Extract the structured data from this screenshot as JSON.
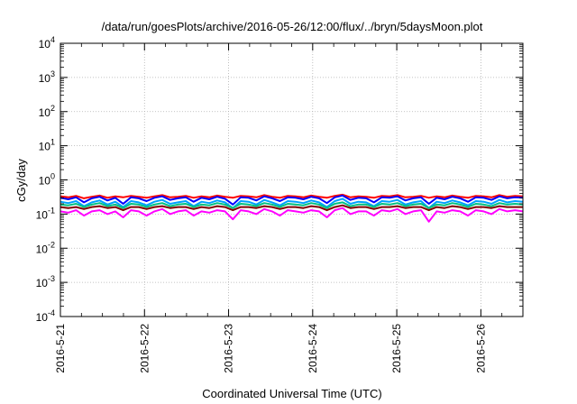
{
  "chart_data": {
    "type": "line",
    "title": "/data/run/goesPlots/archive/2016-05-26/12:00/flux/../bryn/5daysMoon.plot",
    "xlabel": "Coordinated Universal Time (UTC)",
    "ylabel": "cGy/day",
    "x_domain": [
      "2016-05-21",
      "2016-05-26 12:00"
    ],
    "x_ticks": [
      "2016-5-21",
      "2016-5-22",
      "2016-5-23",
      "2016-5-24",
      "2016-5-25",
      "2016-5-26"
    ],
    "y_scale": "log",
    "ylim": [
      0.0001,
      10000
    ],
    "y_ticks": [
      {
        "base": "10",
        "exp": "-4",
        "value": 0.0001
      },
      {
        "base": "10",
        "exp": "-3",
        "value": 0.001
      },
      {
        "base": "10",
        "exp": "-2",
        "value": 0.01
      },
      {
        "base": "10",
        "exp": "-1",
        "value": 0.1
      },
      {
        "base": "10",
        "exp": "0",
        "value": 1
      },
      {
        "base": "10",
        "exp": "1",
        "value": 10
      },
      {
        "base": "10",
        "exp": "2",
        "value": 100
      },
      {
        "base": "10",
        "exp": "3",
        "value": 1000
      },
      {
        "base": "10",
        "exp": "4",
        "value": 10000
      }
    ],
    "grid": true,
    "series": [
      {
        "color": "#ff0000",
        "values": [
          0.33,
          0.31,
          0.34,
          0.29,
          0.32,
          0.35,
          0.3,
          0.33,
          0.31,
          0.34,
          0.32,
          0.3,
          0.33,
          0.36,
          0.31,
          0.32,
          0.34,
          0.3,
          0.33,
          0.31,
          0.35,
          0.32,
          0.3,
          0.34,
          0.33,
          0.31,
          0.36,
          0.32,
          0.3,
          0.34,
          0.33,
          0.31,
          0.35,
          0.32,
          0.3,
          0.34,
          0.37,
          0.31,
          0.33,
          0.32,
          0.3,
          0.34,
          0.33,
          0.36,
          0.31,
          0.32,
          0.34,
          0.3,
          0.33,
          0.31,
          0.35,
          0.32,
          0.3,
          0.34,
          0.33,
          0.31,
          0.36,
          0.32,
          0.34,
          0.33
        ]
      },
      {
        "color": "#0000ff",
        "values": [
          0.3,
          0.27,
          0.31,
          0.22,
          0.29,
          0.32,
          0.25,
          0.3,
          0.2,
          0.31,
          0.29,
          0.24,
          0.3,
          0.33,
          0.26,
          0.29,
          0.31,
          0.23,
          0.3,
          0.27,
          0.32,
          0.28,
          0.19,
          0.31,
          0.3,
          0.25,
          0.33,
          0.29,
          0.24,
          0.31,
          0.3,
          0.27,
          0.32,
          0.29,
          0.21,
          0.31,
          0.35,
          0.26,
          0.3,
          0.29,
          0.22,
          0.31,
          0.3,
          0.33,
          0.25,
          0.29,
          0.31,
          0.2,
          0.3,
          0.27,
          0.32,
          0.29,
          0.23,
          0.31,
          0.3,
          0.26,
          0.33,
          0.29,
          0.31,
          0.3
        ]
      },
      {
        "color": "#00a0ff",
        "values": [
          0.23,
          0.21,
          0.24,
          0.17,
          0.22,
          0.25,
          0.19,
          0.23,
          0.16,
          0.24,
          0.22,
          0.18,
          0.23,
          0.26,
          0.2,
          0.22,
          0.24,
          0.17,
          0.23,
          0.21,
          0.25,
          0.22,
          0.15,
          0.24,
          0.23,
          0.19,
          0.26,
          0.22,
          0.18,
          0.24,
          0.23,
          0.21,
          0.25,
          0.22,
          0.16,
          0.24,
          0.28,
          0.2,
          0.23,
          0.22,
          0.17,
          0.24,
          0.23,
          0.26,
          0.19,
          0.22,
          0.24,
          0.15,
          0.23,
          0.21,
          0.25,
          0.22,
          0.18,
          0.24,
          0.23,
          0.2,
          0.26,
          0.22,
          0.24,
          0.23
        ]
      },
      {
        "color": "#00c080",
        "values": [
          0.19,
          0.18,
          0.2,
          0.16,
          0.19,
          0.21,
          0.17,
          0.19,
          0.15,
          0.2,
          0.19,
          0.16,
          0.19,
          0.21,
          0.17,
          0.19,
          0.2,
          0.16,
          0.19,
          0.18,
          0.21,
          0.19,
          0.15,
          0.2,
          0.19,
          0.17,
          0.21,
          0.19,
          0.16,
          0.2,
          0.19,
          0.18,
          0.21,
          0.19,
          0.15,
          0.2,
          0.22,
          0.17,
          0.19,
          0.19,
          0.16,
          0.2,
          0.19,
          0.21,
          0.17,
          0.19,
          0.2,
          0.15,
          0.19,
          0.18,
          0.21,
          0.19,
          0.16,
          0.2,
          0.19,
          0.17,
          0.21,
          0.19,
          0.2,
          0.19
        ]
      },
      {
        "color": "#800000",
        "values": [
          0.16,
          0.15,
          0.16,
          0.14,
          0.16,
          0.17,
          0.15,
          0.16,
          0.13,
          0.16,
          0.16,
          0.14,
          0.16,
          0.17,
          0.15,
          0.16,
          0.16,
          0.14,
          0.16,
          0.15,
          0.17,
          0.16,
          0.13,
          0.16,
          0.16,
          0.15,
          0.17,
          0.16,
          0.14,
          0.16,
          0.16,
          0.15,
          0.17,
          0.16,
          0.13,
          0.16,
          0.18,
          0.15,
          0.16,
          0.16,
          0.14,
          0.16,
          0.16,
          0.17,
          0.15,
          0.16,
          0.16,
          0.13,
          0.16,
          0.15,
          0.17,
          0.16,
          0.14,
          0.16,
          0.16,
          0.15,
          0.17,
          0.16,
          0.16,
          0.16
        ]
      },
      {
        "color": "#ff00ff",
        "values": [
          0.12,
          0.11,
          0.13,
          0.09,
          0.12,
          0.13,
          0.1,
          0.12,
          0.08,
          0.13,
          0.12,
          0.09,
          0.12,
          0.14,
          0.1,
          0.12,
          0.13,
          0.09,
          0.12,
          0.11,
          0.13,
          0.12,
          0.07,
          0.13,
          0.12,
          0.1,
          0.14,
          0.12,
          0.09,
          0.13,
          0.12,
          0.11,
          0.13,
          0.12,
          0.08,
          0.13,
          0.15,
          0.1,
          0.12,
          0.12,
          0.09,
          0.13,
          0.12,
          0.14,
          0.1,
          0.12,
          0.13,
          0.06,
          0.12,
          0.11,
          0.13,
          0.12,
          0.09,
          0.13,
          0.12,
          0.1,
          0.14,
          0.12,
          0.13,
          0.12
        ]
      }
    ]
  }
}
